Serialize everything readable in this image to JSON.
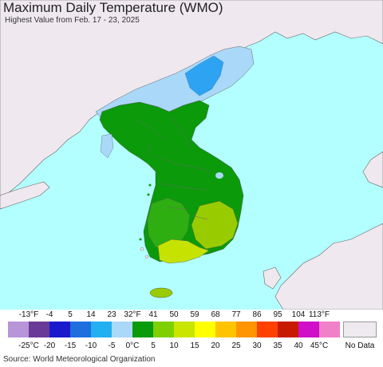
{
  "header": {
    "title": "Maximum Daily Temperature (WMO)",
    "subtitle": "Highest Value from Feb. 17 - 23, 2025"
  },
  "map": {
    "region": "Korean Peninsula",
    "colors": {
      "sea": "#b3ffff",
      "land_outside": "#efe9ef",
      "cold_light_blue": "#aad8f8",
      "cold_blue": "#2ea3f2",
      "green_dark": "#0a8c0a",
      "green_mid": "#2eae10",
      "green_light": "#99cc00",
      "yellow_green": "#c6e200"
    }
  },
  "legend": {
    "fahrenheit_labels": [
      "-13°F",
      "-4",
      "5",
      "14",
      "23",
      "32°F",
      "41",
      "50",
      "59",
      "68",
      "77",
      "86",
      "95",
      "104",
      "113°F"
    ],
    "celsius_labels": [
      "-25°C",
      "-20",
      "-15",
      "-10",
      "-5",
      "0°C",
      "5",
      "10",
      "15",
      "20",
      "25",
      "30",
      "35",
      "40",
      "45°C"
    ],
    "colors": [
      "#b894d8",
      "#6a3a98",
      "#1a1acc",
      "#1e6ee0",
      "#22b0f0",
      "#aad8f8",
      "#0a9a0a",
      "#7ed000",
      "#c8e600",
      "#ffff00",
      "#ffc400",
      "#ff9500",
      "#ff4000",
      "#c81a00",
      "#d010c8",
      "#f080c8"
    ],
    "no_data_label": "No Data",
    "no_data_color": "#efeaef"
  },
  "footer": {
    "source": "Source: World Meteorological Organization"
  }
}
